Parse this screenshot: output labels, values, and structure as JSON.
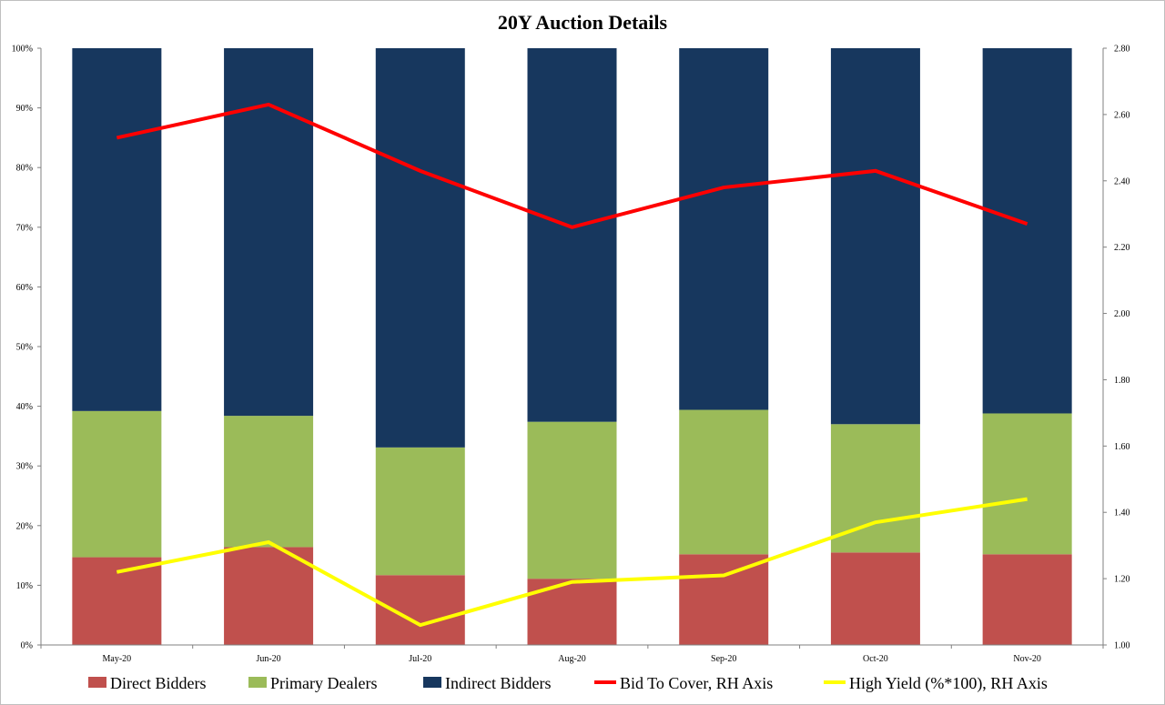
{
  "chart_data": {
    "type": "bar",
    "stacked": true,
    "title": "20Y Auction Details",
    "categories": [
      "May-20",
      "Jun-20",
      "Jul-20",
      "Aug-20",
      "Sep-20",
      "Oct-20",
      "Nov-20"
    ],
    "left_axis": {
      "ylim": [
        0,
        100
      ],
      "ticks": [
        "0%",
        "10%",
        "20%",
        "30%",
        "40%",
        "50%",
        "60%",
        "70%",
        "80%",
        "90%",
        "100%"
      ],
      "tick_values": [
        0,
        10,
        20,
        30,
        40,
        50,
        60,
        70,
        80,
        90,
        100
      ]
    },
    "right_axis": {
      "ylim": [
        1.0,
        2.8
      ],
      "ticks": [
        "1.00",
        "1.20",
        "1.40",
        "1.60",
        "1.80",
        "2.00",
        "2.20",
        "2.40",
        "2.60",
        "2.80"
      ],
      "tick_values": [
        1.0,
        1.2,
        1.4,
        1.6,
        1.8,
        2.0,
        2.2,
        2.4,
        2.6,
        2.8
      ]
    },
    "bar_series": [
      {
        "name": "Direct Bidders",
        "color": "#c0504d",
        "values": [
          14.7,
          16.4,
          11.7,
          11.1,
          15.2,
          15.5,
          15.2
        ]
      },
      {
        "name": "Primary Dealers",
        "color": "#9bbb59",
        "values": [
          24.5,
          22.0,
          21.4,
          26.3,
          24.2,
          21.5,
          23.6
        ]
      },
      {
        "name": "Indirect Bidders",
        "color": "#17375e",
        "values": [
          60.8,
          61.6,
          66.9,
          62.6,
          60.6,
          63.0,
          61.2
        ]
      }
    ],
    "line_series": [
      {
        "name": "Bid To Cover, RH Axis",
        "color": "#ff0000",
        "axis": "right",
        "values": [
          2.53,
          2.63,
          2.43,
          2.26,
          2.38,
          2.43,
          2.27
        ]
      },
      {
        "name": "High Yield (%*100), RH Axis",
        "color": "#ffff00",
        "axis": "right",
        "values": [
          1.22,
          1.31,
          1.06,
          1.19,
          1.21,
          1.37,
          1.44
        ]
      }
    ],
    "grid": false,
    "legend_position": "bottom"
  }
}
